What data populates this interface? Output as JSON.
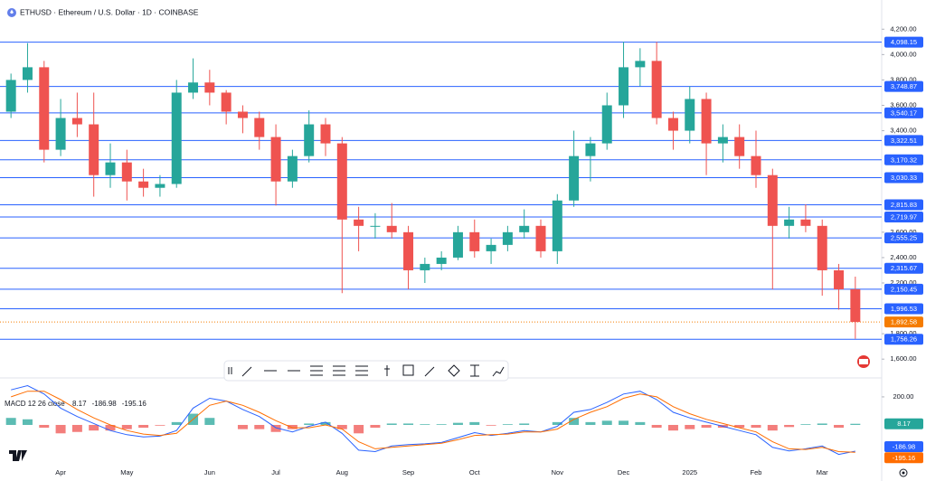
{
  "chart_data": [
    {
      "type": "candlestick",
      "title": "ETHUSD · Ethereum / U.S. Dollar · 1D · COINBASE",
      "categories": [
        null,
        null,
        null,
        "Apr",
        null,
        null,
        null,
        "May",
        null,
        null,
        null,
        null,
        "Jun",
        null,
        null,
        null,
        "Jul",
        null,
        null,
        null,
        "Aug",
        null,
        null,
        null,
        "Sep",
        null,
        null,
        null,
        "Oct",
        null,
        null,
        null,
        null,
        "Nov",
        null,
        null,
        null,
        "Dec",
        null,
        null,
        null,
        "2025",
        null,
        null,
        null,
        "Feb",
        null,
        null,
        null,
        "Mar",
        null,
        null
      ],
      "open": [
        3550,
        3800,
        3900,
        3250,
        3500,
        3450,
        3050,
        3150,
        3000,
        2950,
        2980,
        3700,
        3780,
        3700,
        3550,
        3500,
        3350,
        3000,
        3200,
        3450,
        3300,
        2700,
        2650,
        2650,
        2600,
        2300,
        2350,
        2400,
        2600,
        2450,
        2500,
        2600,
        2650,
        2450,
        2850,
        3200,
        3300,
        3600,
        3900,
        3950,
        3500,
        3400,
        3650,
        3300,
        3350,
        3200,
        3050,
        2650,
        2700,
        2650,
        2300,
        2150
      ],
      "high": [
        3850,
        4090,
        3950,
        3650,
        3700,
        3700,
        3300,
        3250,
        3100,
        3050,
        3800,
        3970,
        3880,
        3720,
        3600,
        3550,
        3450,
        3250,
        3560,
        3500,
        3350,
        2800,
        2750,
        2830,
        2650,
        2400,
        2450,
        2650,
        2700,
        2550,
        2650,
        2780,
        2700,
        2900,
        3400,
        3350,
        3700,
        4100,
        4050,
        4100,
        3550,
        3750,
        3700,
        3450,
        3450,
        3400,
        3100,
        2800,
        2820,
        2700,
        2350,
        2250
      ],
      "low": [
        3500,
        3700,
        3150,
        3200,
        3350,
        2880,
        2950,
        2850,
        2880,
        2880,
        2950,
        3650,
        3600,
        3450,
        3380,
        3250,
        2810,
        2950,
        3150,
        3200,
        2120,
        2450,
        2550,
        2550,
        2150,
        2200,
        2300,
        2380,
        2400,
        2350,
        2450,
        2550,
        2400,
        2350,
        2800,
        3000,
        3250,
        3500,
        3750,
        3450,
        3250,
        3300,
        3050,
        3150,
        3100,
        2950,
        2150,
        2550,
        2600,
        2100,
        1990,
        1760
      ],
      "close": [
        3800,
        3900,
        3250,
        3500,
        3450,
        3050,
        3150,
        3000,
        2950,
        2980,
        3700,
        3780,
        3700,
        3550,
        3500,
        3350,
        3000,
        3200,
        3450,
        3300,
        2700,
        2650,
        2650,
        2600,
        2300,
        2350,
        2400,
        2600,
        2450,
        2500,
        2600,
        2650,
        2450,
        2850,
        3200,
        3300,
        3600,
        3900,
        3950,
        3500,
        3400,
        3650,
        3300,
        3350,
        3200,
        3050,
        2650,
        2700,
        2650,
        2300,
        2150,
        1892.58
      ],
      "up_color": "#26a69a",
      "down_color": "#ef5350",
      "ylim": [
        1580,
        4430
      ],
      "yticks": [
        {
          "value": 4200,
          "label": "4,200.00"
        },
        {
          "value": 4000,
          "label": "4,000.00"
        },
        {
          "value": 3800,
          "label": "3,800.00"
        },
        {
          "value": 3600,
          "label": "3,600.00"
        },
        {
          "value": 3400,
          "label": "3,400.00"
        },
        {
          "value": 2600,
          "label": "2,600.00"
        },
        {
          "value": 2400,
          "label": "2,400.00"
        },
        {
          "value": 2200,
          "label": "2,200.00"
        },
        {
          "value": 1800,
          "label": "1,800.00"
        },
        {
          "value": 1600,
          "label": "1,600.00"
        }
      ],
      "levels": [
        {
          "value": 4098.15,
          "label": "4,098.15"
        },
        {
          "value": 3748.87,
          "label": "3,748.87"
        },
        {
          "value": 3540.17,
          "label": "3,540.17"
        },
        {
          "value": 3322.51,
          "label": "3,322.51"
        },
        {
          "value": 3170.32,
          "label": "3,170.32"
        },
        {
          "value": 3030.33,
          "label": "3,030.33"
        },
        {
          "value": 2815.83,
          "label": "2,815.83"
        },
        {
          "value": 2719.97,
          "label": "2,719.97"
        },
        {
          "value": 2555.25,
          "label": "2,555.25"
        },
        {
          "value": 2315.67,
          "label": "2,315.67"
        },
        {
          "value": 2150.45,
          "label": "2,150.45"
        },
        {
          "value": 1996.53,
          "label": "1,996.53"
        },
        {
          "value": 1756.26,
          "label": "1,756.26"
        }
      ],
      "level_color": "#2962ff",
      "last_price": {
        "value": 1892.58,
        "label": "1,892.58"
      },
      "last_color": "#f57c00"
    },
    {
      "type": "macd",
      "title": "MACD 12 26 close",
      "ylim": [
        -290,
        322
      ],
      "yticks": [
        {
          "value": 200,
          "label": "200.00"
        }
      ],
      "series": [
        {
          "color": "#26a69a",
          "negative_color": "#ef5350",
          "values": [
            50,
            40,
            -20,
            -60,
            -50,
            -40,
            -40,
            -30,
            -20,
            -5,
            20,
            80,
            50,
            0,
            -30,
            -30,
            -50,
            -30,
            10,
            20,
            -30,
            -60,
            -20,
            10,
            10,
            5,
            5,
            15,
            20,
            -5,
            5,
            10,
            0,
            20,
            50,
            20,
            30,
            30,
            20,
            -20,
            -40,
            -30,
            -20,
            -20,
            -20,
            -20,
            -40,
            -15,
            5,
            10,
            -20,
            8.17
          ]
        },
        {
          "color": "#2962ff",
          "values": [
            250,
            280,
            220,
            120,
            60,
            10,
            -40,
            -70,
            -85,
            -80,
            -40,
            120,
            190,
            170,
            110,
            60,
            -20,
            -50,
            -10,
            20,
            -60,
            -180,
            -190,
            -150,
            -140,
            -135,
            -125,
            -90,
            -55,
            -75,
            -60,
            -40,
            -50,
            -10,
            90,
            110,
            160,
            220,
            240,
            180,
            90,
            50,
            20,
            -10,
            -40,
            -70,
            -160,
            -185,
            -170,
            -150,
            -210,
            -186.98
          ]
        },
        {
          "color": "#ff6d00",
          "values": [
            200,
            240,
            240,
            180,
            110,
            50,
            0,
            -40,
            -65,
            -75,
            -60,
            40,
            140,
            170,
            140,
            90,
            30,
            -20,
            -20,
            0,
            -30,
            -120,
            -170,
            -160,
            -150,
            -140,
            -130,
            -105,
            -75,
            -70,
            -65,
            -50,
            -50,
            -30,
            40,
            90,
            130,
            190,
            220,
            200,
            130,
            80,
            40,
            10,
            -20,
            -50,
            -120,
            -170,
            -175,
            -160,
            -190,
            -195.16
          ]
        }
      ]
    }
  ]
}
